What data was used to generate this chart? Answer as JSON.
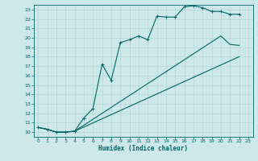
{
  "xlabel": "Humidex (Indice chaleur)",
  "bg_color": "#cce8e8",
  "line_color": "#006666",
  "grid_color": "#b0d4d4",
  "xlim": [
    -0.5,
    23.5
  ],
  "ylim": [
    9.5,
    23.5
  ],
  "xticks": [
    0,
    1,
    2,
    3,
    4,
    5,
    6,
    7,
    8,
    9,
    10,
    11,
    12,
    13,
    14,
    15,
    16,
    17,
    18,
    19,
    20,
    21,
    22,
    23
  ],
  "yticks": [
    10,
    11,
    12,
    13,
    14,
    15,
    16,
    17,
    18,
    19,
    20,
    21,
    22,
    23
  ],
  "line1_x": [
    0,
    1,
    2,
    3,
    4,
    5,
    6,
    7,
    8,
    9,
    10,
    11,
    12,
    13,
    14,
    15,
    16,
    17,
    18,
    19,
    20,
    21,
    22
  ],
  "line1_y": [
    10.5,
    10.3,
    10.0,
    10.0,
    10.1,
    11.5,
    12.5,
    17.2,
    15.5,
    19.5,
    19.8,
    20.2,
    19.8,
    22.3,
    22.2,
    22.2,
    23.3,
    23.4,
    23.2,
    22.8,
    22.8,
    22.5,
    22.5
  ],
  "line2_x": [
    0,
    1,
    2,
    3,
    4,
    20,
    21,
    22
  ],
  "line2_y": [
    10.5,
    10.3,
    10.0,
    10.0,
    10.1,
    20.2,
    19.3,
    19.2
  ],
  "line2_markers": [
    0,
    20,
    21,
    22
  ],
  "line3_x": [
    0,
    1,
    2,
    3,
    4,
    22
  ],
  "line3_y": [
    10.5,
    10.3,
    10.0,
    10.0,
    10.1,
    18.0
  ]
}
